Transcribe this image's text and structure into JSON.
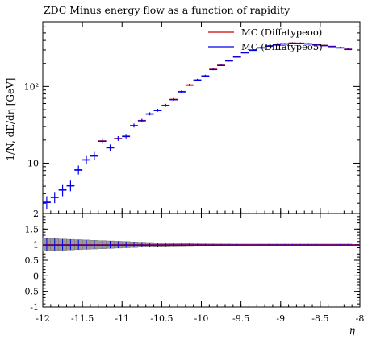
{
  "chart_data": {
    "type": "scatter",
    "title": "ZDC Minus energy flow as a function of rapidity",
    "xlabel": "η",
    "ylabel": "1/N, dE/dη [GeV]",
    "ratio_ylabel": "",
    "xlim": [
      -12,
      -8
    ],
    "ylim": [
      2.2,
      700
    ],
    "yscale": "log",
    "ratio_ylim": [
      -1,
      2
    ],
    "x_ticks": [
      -12,
      -11.5,
      -11,
      -10.5,
      -10,
      -9.5,
      -9,
      -8.5,
      -8
    ],
    "x_tick_labels": [
      "-12",
      "-11.5",
      "-11",
      "-10.5",
      "-10",
      "-9.5",
      "-9",
      "-8.5",
      "-8"
    ],
    "y_ticks": [
      10,
      100
    ],
    "y_tick_labels": [
      "10",
      "10²"
    ],
    "ratio_ticks": [
      -1,
      -0.5,
      0,
      0.5,
      1,
      1.5,
      2
    ],
    "ratio_tick_labels": [
      "-1",
      "-0.5",
      "0",
      "0.5",
      "1",
      "1.5",
      "2"
    ],
    "legend_position": "top-right",
    "series": [
      {
        "name": "MC (Diffatypeoo)",
        "color": "#cc0000"
      },
      {
        "name": "MC (Diffatypeo5)",
        "color": "#0000ee"
      }
    ],
    "bins": {
      "x": [
        -11.95,
        -11.85,
        -11.75,
        -11.65,
        -11.55,
        -11.45,
        -11.35,
        -11.25,
        -11.15,
        -11.05,
        -10.95,
        -10.85,
        -10.75,
        -10.65,
        -10.55,
        -10.45,
        -10.35,
        -10.25,
        -10.15,
        -10.05,
        -9.95,
        -9.85,
        -9.75,
        -9.65,
        -9.55,
        -9.45,
        -9.35,
        -9.25,
        -9.15,
        -9.05,
        -8.95,
        -8.85,
        -8.75,
        -8.65,
        -8.55,
        -8.45,
        -8.35,
        -8.25,
        -8.15
      ],
      "y": [
        3.1,
        3.6,
        4.5,
        5.1,
        8.2,
        11.1,
        12.5,
        19.5,
        16.0,
        21.0,
        22.5,
        31.0,
        36.0,
        44.0,
        49.0,
        57.0,
        68.0,
        86.0,
        105.0,
        122.0,
        138.0,
        168.0,
        190.0,
        218.0,
        245.0,
        278.0,
        300.0,
        322.0,
        340.0,
        352.0,
        362.0,
        370.0,
        368.0,
        362.0,
        352.0,
        345.0,
        335.0,
        322.0,
        308.0
      ],
      "yerr": [
        0.6,
        0.6,
        0.8,
        0.8,
        1.1,
        1.3,
        1.5,
        1.6,
        1.5,
        1.5,
        1.5,
        1.8,
        1.8,
        2.0,
        2.2,
        2.5,
        2.6,
        3.0,
        3.5,
        4.0,
        4.3,
        4.8,
        5.2,
        5.8,
        6.0,
        6.5,
        7.0,
        7.2,
        7.4,
        7.6,
        7.8,
        8.0,
        8.0,
        8.0,
        7.8,
        7.6,
        7.4,
        7.2,
        7.0
      ],
      "ratio_band": [
        0.2,
        0.19,
        0.18,
        0.17,
        0.16,
        0.15,
        0.14,
        0.13,
        0.12,
        0.11,
        0.1,
        0.09,
        0.08,
        0.07,
        0.06,
        0.05,
        0.045,
        0.04,
        0.035,
        0.03,
        0.028,
        0.026,
        0.024,
        0.022,
        0.02,
        0.02,
        0.02,
        0.02,
        0.02,
        0.02,
        0.02,
        0.02,
        0.02,
        0.02,
        0.02,
        0.02,
        0.02,
        0.02,
        0.02
      ]
    }
  }
}
